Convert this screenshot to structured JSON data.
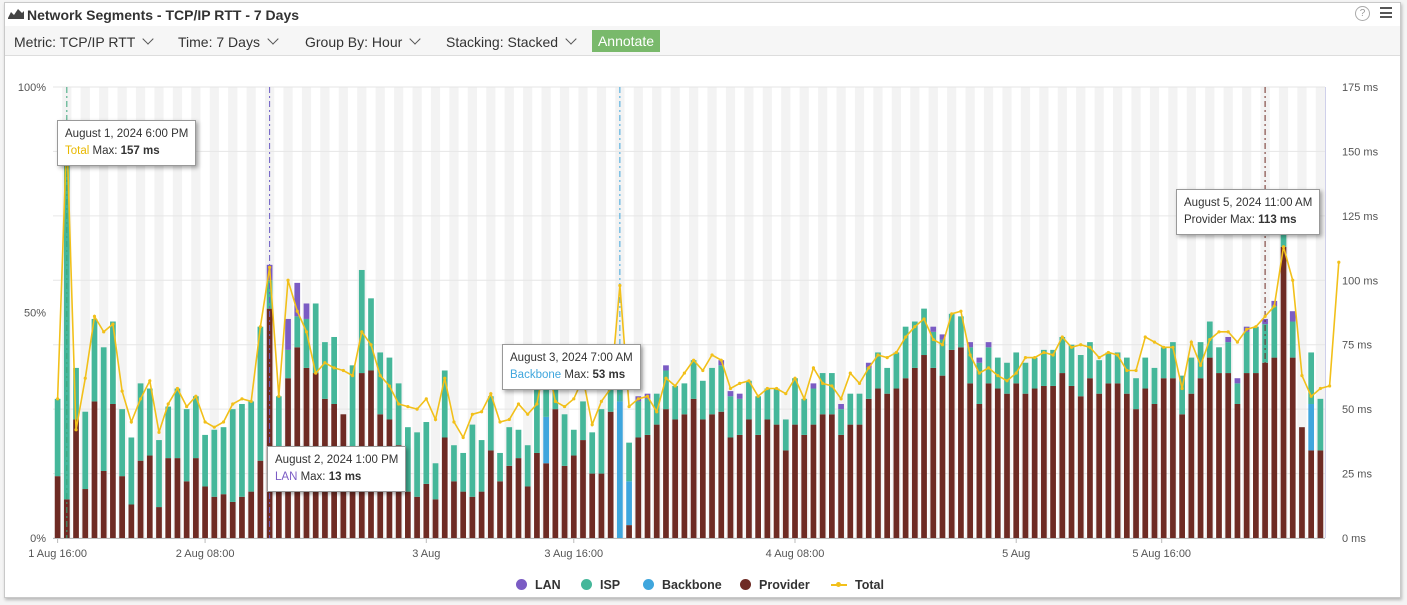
{
  "header": {
    "title": "Network Segments - TCP/IP RTT - 7 Days",
    "help_glyph": "?"
  },
  "toolbar": {
    "metric_label": "Metric: TCP/IP RTT",
    "time_label": "Time: 7 Days",
    "group_label": "Group By: Hour",
    "stacking_label": "Stacking: Stacked",
    "annotate_label": "Annotate"
  },
  "colors": {
    "lan": "#7b5cc4",
    "isp": "#45b79a",
    "backbone": "#3fa6dd",
    "provider": "#6e2b24",
    "total": "#f2c01a",
    "annotate_bg": "#79b96b"
  },
  "tooltips": [
    {
      "date": "August 1, 2024 6:00 PM",
      "series": "Total",
      "text": "Max:",
      "value": "157 ms",
      "color": "#e8b800"
    },
    {
      "date": "August 2, 2024 1:00 PM",
      "series": "LAN",
      "text": "Max:",
      "value": "13 ms",
      "color": "#7b5cc4"
    },
    {
      "date": "August 3, 2024 7:00 AM",
      "series": "Backbone",
      "text": "Max:",
      "value": "53 ms",
      "color": "#3fa6dd"
    },
    {
      "date": "August 5, 2024 11:00 AM",
      "series": "Provider",
      "text": "Max:",
      "value": "113 ms",
      "color": "#333333"
    }
  ],
  "chart_data": {
    "type": "bar",
    "stacking": "stacked",
    "x_tick_labels": [
      "1 Aug 16:00",
      "2 Aug 08:00",
      "3 Aug",
      "3 Aug 16:00",
      "4 Aug 08:00",
      "5 Aug",
      "5 Aug 16:00"
    ],
    "y_left_ticks": [
      "0%",
      "50%",
      "100%"
    ],
    "y_right_ticks": [
      "0 ms",
      "25 ms",
      "50 ms",
      "75 ms",
      "100 ms",
      "125 ms",
      "150 ms",
      "175 ms"
    ],
    "y_right_range": [
      0,
      175
    ],
    "series": [
      {
        "name": "LAN",
        "values": [
          0,
          0,
          0,
          0,
          0,
          0,
          0,
          0,
          0,
          0,
          0,
          0,
          0,
          0,
          0,
          0,
          0,
          0,
          0,
          0,
          0,
          0,
          0,
          6,
          0,
          12,
          13,
          6,
          0,
          0,
          0,
          0,
          0,
          0,
          0,
          0,
          0,
          0,
          0,
          0,
          0,
          0,
          0,
          0,
          0,
          0,
          0,
          0,
          0,
          0,
          0,
          0,
          0,
          0,
          0,
          0,
          0,
          0,
          0,
          0,
          0,
          0,
          0,
          2,
          2,
          0,
          2,
          0,
          0,
          0,
          0,
          0,
          2,
          2,
          2,
          0,
          0,
          0,
          0,
          0,
          0,
          0,
          2,
          0,
          0,
          2,
          0,
          0,
          2,
          0,
          0,
          0,
          0,
          0,
          0,
          2,
          2,
          0,
          0,
          2,
          2,
          2,
          0,
          0,
          0,
          0,
          0,
          0,
          0,
          0,
          0,
          0,
          0,
          0,
          0,
          0,
          0,
          0,
          0,
          0,
          0,
          0,
          0,
          0,
          0,
          0,
          0,
          2,
          2,
          2,
          0,
          2,
          2,
          0,
          4,
          0,
          0,
          0
        ]
      },
      {
        "name": "ISP",
        "values": [
          30,
          133,
          20,
          30,
          32,
          48,
          32,
          26,
          26,
          30,
          26,
          26,
          20,
          27,
          28,
          24,
          20,
          26,
          26,
          36,
          36,
          35,
          52,
          11,
          26,
          11,
          12,
          19,
          27,
          22,
          26,
          0,
          37,
          40,
          28,
          24,
          24,
          24,
          25,
          25,
          24,
          14,
          26,
          14,
          15,
          28,
          20,
          21,
          11,
          15,
          11,
          16,
          30,
          24,
          14,
          20,
          10,
          15,
          16,
          25,
          10,
          15,
          15,
          14,
          14,
          12,
          15,
          13,
          12,
          15,
          15,
          18,
          18,
          16,
          14,
          15,
          15,
          12,
          14,
          12,
          18,
          14,
          14,
          16,
          16,
          10,
          12,
          12,
          12,
          14,
          10,
          14,
          20,
          18,
          18,
          14,
          14,
          14,
          12,
          14,
          16,
          14,
          12,
          12,
          12,
          12,
          12,
          14,
          14,
          14,
          16,
          16,
          14,
          13,
          12,
          12,
          14,
          12,
          12,
          14,
          12,
          14,
          15,
          14,
          14,
          14,
          10,
          12,
          8,
          16,
          18,
          15,
          20,
          8,
          14,
          0,
          20,
          20,
          20,
          24
        ]
      },
      {
        "name": "Backbone",
        "values": [
          0,
          0,
          0,
          0,
          0,
          0,
          0,
          0,
          0,
          0,
          0,
          0,
          0,
          0,
          0,
          0,
          0,
          0,
          0,
          0,
          0,
          0,
          0,
          0,
          0,
          0,
          0,
          0,
          0,
          0,
          0,
          0,
          0,
          0,
          0,
          0,
          0,
          0,
          0,
          0,
          0,
          0,
          0,
          0,
          0,
          0,
          0,
          0,
          0,
          0,
          0,
          0,
          0,
          18,
          0,
          0,
          0,
          0,
          0,
          0,
          0,
          53,
          17,
          0,
          0,
          0,
          0,
          0,
          0,
          0,
          0,
          0,
          0,
          0,
          0,
          0,
          0,
          0,
          0,
          0,
          0,
          0,
          0,
          0,
          0,
          0,
          0,
          0,
          0,
          0,
          0,
          0,
          0,
          0,
          0,
          0,
          0,
          0,
          0,
          0,
          0,
          0,
          0,
          0,
          0,
          0,
          0,
          0,
          0,
          0,
          0,
          0,
          0,
          0,
          0,
          0,
          0,
          0,
          0,
          0,
          0,
          0,
          0,
          0,
          0,
          0,
          0,
          0,
          0,
          0,
          0,
          0,
          0,
          0,
          0,
          0,
          18,
          0,
          0,
          0
        ]
      },
      {
        "name": "Provider",
        "values": [
          24,
          15,
          46,
          19,
          53,
          26,
          52,
          24,
          13,
          30,
          32,
          12,
          31,
          31,
          22,
          31,
          20,
          16,
          17,
          14,
          16,
          18,
          30,
          89,
          29,
          62,
          74,
          66,
          64,
          54,
          52,
          48,
          30,
          64,
          65,
          48,
          46,
          36,
          18,
          16,
          21,
          15,
          39,
          22,
          18,
          16,
          18,
          34,
          22,
          28,
          31,
          20,
          33,
          29,
          50,
          28,
          32,
          38,
          25,
          25,
          49,
          0,
          5,
          39,
          40,
          44,
          50,
          46,
          48,
          54,
          46,
          48,
          49,
          39,
          40,
          46,
          40,
          46,
          44,
          34,
          44,
          40,
          44,
          48,
          48,
          40,
          44,
          44,
          54,
          58,
          56,
          58,
          62,
          66,
          71,
          66,
          63,
          73,
          74,
          60,
          52,
          60,
          58,
          56,
          60,
          56,
          58,
          59,
          59,
          64,
          59,
          55,
          62,
          56,
          60,
          60,
          56,
          50,
          58,
          52,
          62,
          62,
          48,
          56,
          62,
          70,
          64,
          64,
          52,
          64,
          64,
          68,
          70,
          113,
          70,
          43,
          34,
          34,
          37,
          84
        ]
      },
      {
        "name": "Total",
        "type": "line",
        "values": [
          54,
          157,
          42,
          62,
          86,
          80,
          83,
          57,
          45,
          54,
          61,
          41,
          52,
          58,
          51,
          55,
          45,
          43,
          45,
          52,
          54,
          53,
          82,
          105,
          55,
          100,
          88,
          80,
          64,
          68,
          66,
          65,
          63,
          80,
          75,
          63,
          59,
          52,
          51,
          50,
          54,
          46,
          62,
          45,
          39,
          48,
          49,
          56,
          45,
          46,
          52,
          48,
          52,
          71,
          53,
          51,
          54,
          62,
          44,
          53,
          58,
          98,
          51,
          54,
          55,
          49,
          62,
          59,
          64,
          69,
          65,
          71,
          69,
          58,
          60,
          61,
          55,
          58,
          58,
          56,
          62,
          54,
          66,
          60,
          59,
          54,
          64,
          60,
          66,
          71,
          70,
          72,
          78,
          82,
          85,
          77,
          75,
          87,
          88,
          71,
          64,
          66,
          63,
          61,
          64,
          70,
          70,
          72,
          71,
          78,
          74,
          75,
          74,
          70,
          72,
          71,
          65,
          65,
          78,
          76,
          74,
          74,
          58,
          76,
          67,
          77,
          80,
          80,
          76,
          81,
          82,
          86,
          90,
          113,
          100,
          63,
          55,
          58,
          59,
          107
        ]
      }
    ]
  },
  "legend": {
    "items": [
      "LAN",
      "ISP",
      "Backbone",
      "Provider",
      "Total"
    ]
  }
}
